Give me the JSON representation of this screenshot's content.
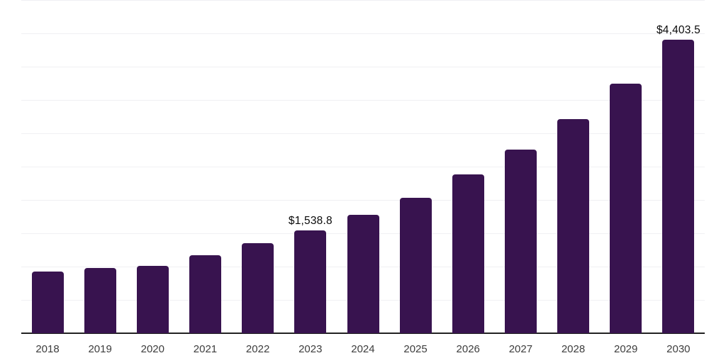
{
  "chart_data": {
    "type": "bar",
    "title": "",
    "xlabel": "",
    "ylabel": "",
    "categories": [
      "2018",
      "2019",
      "2020",
      "2021",
      "2022",
      "2023",
      "2024",
      "2025",
      "2026",
      "2027",
      "2028",
      "2029",
      "2030"
    ],
    "values": [
      925,
      975,
      1010,
      1170,
      1350,
      1538.8,
      1775,
      2030,
      2380,
      2750,
      3210,
      3740,
      4403.5
    ],
    "ylim": [
      0,
      5000
    ],
    "grid_step": 500,
    "grid": "horizontal-only",
    "legend": "none",
    "y_axis_labels_visible": false,
    "annotations": [
      {
        "category": "2023",
        "label": "$1,538.8"
      },
      {
        "category": "2030",
        "label": "$4,403.5"
      }
    ]
  },
  "colors": {
    "background": "#ffffff",
    "bar": "#38134F",
    "gridline": "#f0f0f3",
    "axis_line": "#222222",
    "tick_label": "#3d3d3d",
    "data_label": "#0a0a0a"
  }
}
